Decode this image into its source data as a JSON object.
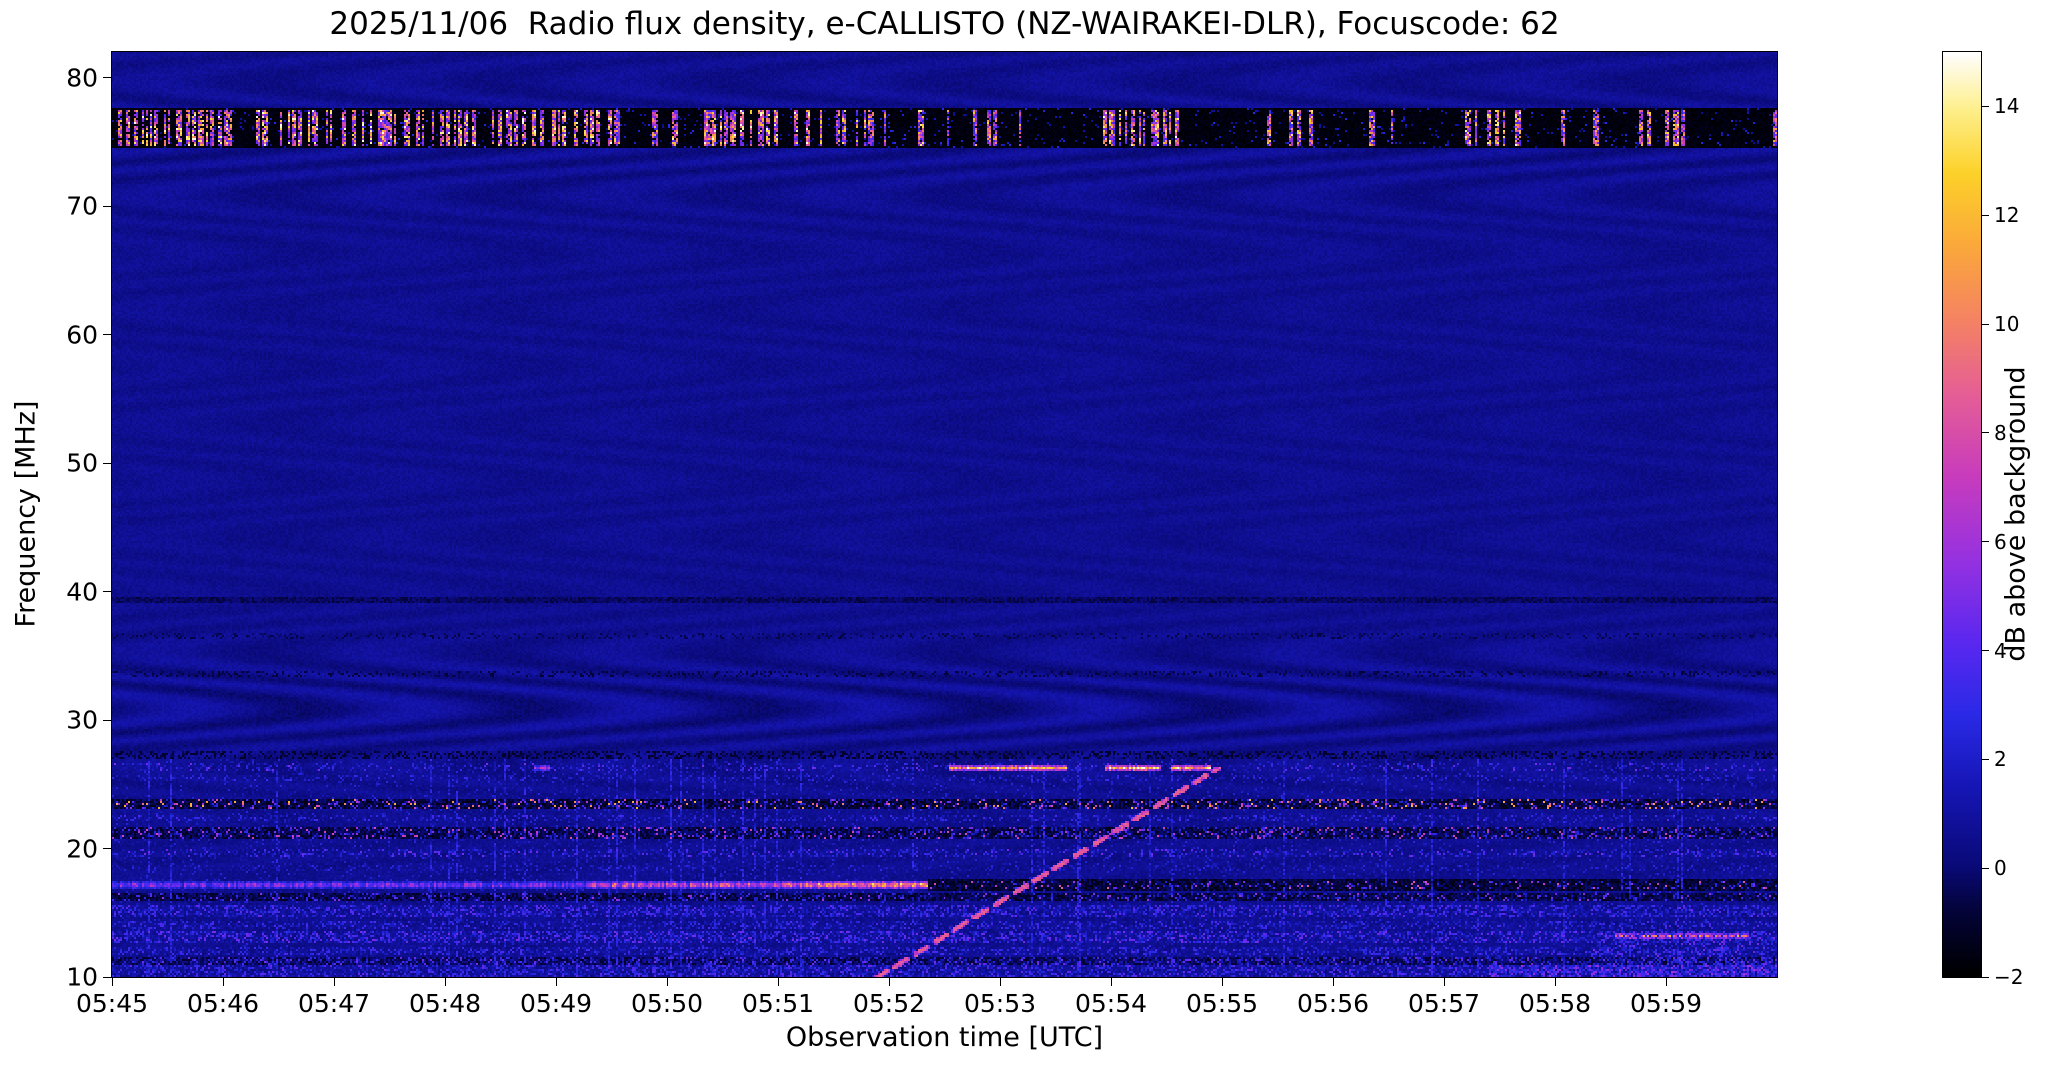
{
  "figure": {
    "background": "#ffffff"
  },
  "chart_data": {
    "type": "heatmap",
    "title": "2025/11/06  Radio flux density, e-CALLISTO (NZ-WAIRAKEI-DLR), Focuscode: 62",
    "xlabel": "Observation time [UTC]",
    "ylabel": "Frequency [MHz]",
    "x_ticks": [
      "05:45",
      "05:46",
      "05:47",
      "05:48",
      "05:49",
      "05:50",
      "05:51",
      "05:52",
      "05:53",
      "05:54",
      "05:55",
      "05:56",
      "05:57",
      "05:58",
      "05:59"
    ],
    "x_range_minutes": [
      0,
      15
    ],
    "y_ticks": [
      10,
      20,
      30,
      40,
      50,
      60,
      70,
      80
    ],
    "y_range": [
      10,
      82
    ],
    "grid": false,
    "colorbar": {
      "label": "dB above background",
      "vmin": -2,
      "vmax": 15,
      "ticks": [
        {
          "value": 14,
          "label": "14"
        },
        {
          "value": 12,
          "label": "12"
        },
        {
          "value": 10,
          "label": "10"
        },
        {
          "value": 8,
          "label": "8"
        },
        {
          "value": 6,
          "label": "6"
        },
        {
          "value": 4,
          "label": "4"
        },
        {
          "value": 2,
          "label": "2"
        },
        {
          "value": 0,
          "label": "0"
        },
        {
          "value": -2,
          "label": "−2"
        }
      ]
    },
    "colormap": [
      {
        "t": 0.0,
        "hex": "#000000"
      },
      {
        "t": 0.07,
        "hex": "#04043a"
      },
      {
        "t": 0.118,
        "hex": "#0a0a78"
      },
      {
        "t": 0.2,
        "hex": "#1616b4"
      },
      {
        "t": 0.28,
        "hex": "#2a2ae6"
      },
      {
        "t": 0.36,
        "hex": "#5a28f0"
      },
      {
        "t": 0.45,
        "hex": "#9632e1"
      },
      {
        "t": 0.54,
        "hex": "#c83cbe"
      },
      {
        "t": 0.63,
        "hex": "#e65f96"
      },
      {
        "t": 0.71,
        "hex": "#f58364"
      },
      {
        "t": 0.79,
        "hex": "#fba83c"
      },
      {
        "t": 0.87,
        "hex": "#fdd22a"
      },
      {
        "t": 0.94,
        "hex": "#fef08e"
      },
      {
        "t": 1.0,
        "hex": "#ffffff"
      }
    ],
    "background": {
      "v0": 0.25,
      "v1": 0.85,
      "wave_amp": 0.16,
      "wave_zones": [
        {
          "f": 31,
          "sigma": 4.5,
          "amp": 0.45
        },
        {
          "f": 75,
          "sigma": 5.0,
          "amp": 0.3
        }
      ]
    },
    "bands": [
      {
        "f0": 74.6,
        "f1": 77.7,
        "mode": "fill",
        "v0": -2.0,
        "v1": -1.4
      },
      {
        "f0": 74.6,
        "f1": 77.7,
        "mode": "speckle",
        "p": 0.05,
        "v0": 0.5,
        "v1": 3
      },
      {
        "f0": 74.7,
        "f1": 77.5,
        "mode": "colspeckle",
        "p": 0.02,
        "v0": 3,
        "v1": 12
      },
      {
        "f0": 74.7,
        "f1": 77.5,
        "mode": "colspeckle",
        "p": 0.55,
        "v0": 4,
        "v1": 15,
        "t0": 0.0,
        "t1": 1.05
      },
      {
        "f0": 74.7,
        "f1": 77.5,
        "mode": "colspeckle",
        "p": 0.3,
        "v0": 4,
        "v1": 15,
        "t0": 1.3,
        "t1": 2.0
      },
      {
        "f0": 74.7,
        "f1": 77.5,
        "mode": "colspeckle",
        "p": 0.55,
        "v0": 4,
        "v1": 15,
        "t0": 2.05,
        "t1": 2.55
      },
      {
        "f0": 74.7,
        "f1": 77.5,
        "mode": "colspeckle",
        "p": 0.45,
        "v0": 4,
        "v1": 15,
        "t0": 2.6,
        "t1": 4.55
      },
      {
        "f0": 74.7,
        "f1": 77.5,
        "mode": "colspeckle",
        "p": 0.4,
        "v0": 4,
        "v1": 15,
        "t0": 5.05,
        "t1": 6.4
      },
      {
        "f0": 74.7,
        "f1": 77.5,
        "mode": "colspeckle",
        "p": 0.22,
        "v0": 3,
        "v1": 14,
        "t0": 6.45,
        "t1": 7.35
      },
      {
        "f0": 74.7,
        "f1": 77.5,
        "mode": "colspeckle",
        "p": 0.15,
        "v0": 3,
        "v1": 13,
        "t0": 7.5,
        "t1": 8.35
      },
      {
        "f0": 74.7,
        "f1": 77.5,
        "mode": "colspeckle",
        "p": 0.3,
        "v0": 4,
        "v1": 15,
        "t0": 8.85,
        "t1": 9.65
      },
      {
        "f0": 74.7,
        "f1": 77.5,
        "mode": "colspeckle",
        "p": 0.25,
        "v0": 3,
        "v1": 14,
        "t0": 10.3,
        "t1": 10.85
      },
      {
        "f0": 74.7,
        "f1": 77.5,
        "mode": "colspeckle",
        "p": 0.18,
        "v0": 3,
        "v1": 13,
        "t0": 11.15,
        "t1": 11.55
      },
      {
        "f0": 74.7,
        "f1": 77.5,
        "mode": "colspeckle",
        "p": 0.25,
        "v0": 4,
        "v1": 15,
        "t0": 12.15,
        "t1": 12.75
      },
      {
        "f0": 74.7,
        "f1": 77.5,
        "mode": "colspeckle",
        "p": 0.35,
        "v0": 4,
        "v1": 14,
        "t0": 13.75,
        "t1": 14.15
      },
      {
        "f0": 39.1,
        "f1": 39.5,
        "mode": "fill",
        "v0": -0.9,
        "v1": 0.3
      },
      {
        "f0": 36.3,
        "f1": 36.7,
        "mode": "speckle",
        "p": 0.25,
        "v0": -0.7,
        "v1": 0.4
      },
      {
        "f0": 33.3,
        "f1": 33.8,
        "mode": "speckle",
        "p": 0.3,
        "v0": -0.9,
        "v1": 0.4
      },
      {
        "f0": 10.0,
        "f1": 27.0,
        "mode": "speckle",
        "p": 0.1,
        "v0": 0.8,
        "v1": 2.6
      },
      {
        "f0": 27.0,
        "f1": 27.5,
        "mode": "speckle",
        "p": 0.45,
        "v0": -1.2,
        "v1": 0.4
      },
      {
        "f0": 26.0,
        "f1": 26.6,
        "mode": "speckle",
        "p": 0.2,
        "v0": 1.0,
        "v1": 5.0
      },
      {
        "f0": 26.05,
        "f1": 26.55,
        "mode": "line",
        "v0": 5,
        "v1": 9,
        "t0": 3.8,
        "t1": 3.95
      },
      {
        "f0": 26.05,
        "f1": 26.55,
        "mode": "line",
        "v0": 8,
        "v1": 14,
        "t0": 7.55,
        "t1": 8.6
      },
      {
        "f0": 26.05,
        "f1": 26.55,
        "mode": "line",
        "v0": 9,
        "v1": 15,
        "t0": 8.95,
        "t1": 9.45
      },
      {
        "f0": 26.05,
        "f1": 26.55,
        "mode": "line",
        "v0": 8,
        "v1": 14,
        "t0": 9.55,
        "t1": 9.9
      },
      {
        "f0": 25.2,
        "f1": 25.7,
        "mode": "speckle",
        "p": 0.25,
        "v0": 0.8,
        "v1": 3.5
      },
      {
        "f0": 23.0,
        "f1": 23.9,
        "mode": "fill",
        "v0": -1.8,
        "v1": 0.3
      },
      {
        "f0": 23.0,
        "f1": 23.9,
        "mode": "speckle",
        "p": 0.18,
        "v0": 2,
        "v1": 12
      },
      {
        "f0": 22.1,
        "f1": 22.6,
        "mode": "speckle",
        "p": 0.3,
        "v0": 0.8,
        "v1": 4
      },
      {
        "f0": 20.8,
        "f1": 21.7,
        "mode": "fill",
        "v0": -1.5,
        "v1": 0.4
      },
      {
        "f0": 20.8,
        "f1": 21.7,
        "mode": "speckle",
        "p": 0.22,
        "v0": 1.5,
        "v1": 8
      },
      {
        "f0": 19.3,
        "f1": 19.9,
        "mode": "speckle",
        "p": 0.3,
        "v0": 1,
        "v1": 5
      },
      {
        "f0": 18.3,
        "f1": 18.7,
        "mode": "speckle",
        "p": 0.2,
        "v0": 0.8,
        "v1": 3
      },
      {
        "f0": 16.9,
        "f1": 17.45,
        "mode": "line",
        "v0": 2.5,
        "v1": 6,
        "t0": 0,
        "t1": 4.3
      },
      {
        "f0": 16.9,
        "f1": 17.45,
        "mode": "line",
        "v0": 4,
        "v1": 9,
        "t0": 4.3,
        "t1": 6.2
      },
      {
        "f0": 16.9,
        "f1": 17.45,
        "mode": "line",
        "v0": 6,
        "v1": 12,
        "t0": 6.2,
        "t1": 7.35
      },
      {
        "f0": 16.7,
        "f1": 17.6,
        "mode": "fill",
        "v0": -1.8,
        "v1": 0.1,
        "t0": 7.35,
        "t1": 15
      },
      {
        "f0": 16.8,
        "f1": 17.4,
        "mode": "speckle",
        "p": 0.12,
        "v0": 2,
        "v1": 9,
        "t0": 7.35,
        "t1": 15
      },
      {
        "f0": 15.9,
        "f1": 16.6,
        "mode": "fill",
        "v0": -1.5,
        "v1": 0.3
      },
      {
        "f0": 15.9,
        "f1": 16.6,
        "mode": "speckle",
        "p": 0.15,
        "v0": 1.5,
        "v1": 6
      },
      {
        "f0": 14.7,
        "f1": 15.6,
        "mode": "speckle",
        "p": 0.55,
        "v0": 1,
        "v1": 4.5
      },
      {
        "f0": 13.8,
        "f1": 14.4,
        "mode": "speckle",
        "p": 0.4,
        "v0": 0.8,
        "v1": 4
      },
      {
        "f0": 12.7,
        "f1": 13.6,
        "mode": "speckle",
        "p": 0.55,
        "v0": 1,
        "v1": 5
      },
      {
        "f0": 13.0,
        "f1": 13.45,
        "mode": "line",
        "v0": 7,
        "v1": 11,
        "t0": 13.55,
        "t1": 14.75
      },
      {
        "f0": 11.7,
        "f1": 12.4,
        "mode": "speckle",
        "p": 0.45,
        "v0": 0.8,
        "v1": 4
      },
      {
        "f0": 10.9,
        "f1": 11.6,
        "mode": "fill",
        "v0": -1.2,
        "v1": 0.6
      },
      {
        "f0": 10.9,
        "f1": 11.6,
        "mode": "speckle",
        "p": 0.3,
        "v0": 1,
        "v1": 5
      },
      {
        "f0": 10.0,
        "f1": 10.9,
        "mode": "speckle",
        "p": 0.5,
        "v0": 1,
        "v1": 4.5
      },
      {
        "f0": 10.0,
        "f1": 13.6,
        "mode": "speckle",
        "p": 0.3,
        "v0": 1.5,
        "v1": 5,
        "t0": 13.3,
        "t1": 15
      },
      {
        "f0": 10.0,
        "f1": 11.0,
        "mode": "speckle",
        "p": 0.5,
        "v0": 2,
        "v1": 6,
        "t0": 12.4,
        "t1": 15
      }
    ],
    "verticals": {
      "count": 40,
      "f0": 10,
      "f1": 26.9,
      "v0": 1.0,
      "v1": 3.4,
      "row_p": 0.6
    },
    "drift": {
      "t0": 6.85,
      "f_start": 10.0,
      "t1": 9.95,
      "f_end": 26.4,
      "v0": 4,
      "v1": 9,
      "dash_on": 0.12,
      "dash_off": 0.06,
      "thickness": 2
    }
  }
}
